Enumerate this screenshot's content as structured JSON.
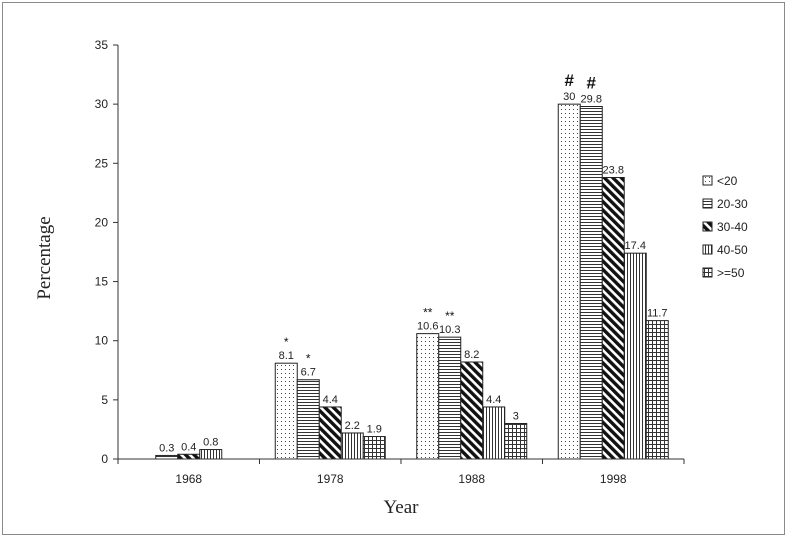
{
  "chart_data": {
    "type": "bar",
    "categories": [
      "1968",
      "1978",
      "1988",
      "1998"
    ],
    "series": [
      {
        "name": "<20",
        "values": [
          null,
          8.1,
          10.6,
          30
        ],
        "pattern": "dots"
      },
      {
        "name": "20-30",
        "values": [
          0.3,
          6.7,
          10.3,
          29.8
        ],
        "pattern": "hlines"
      },
      {
        "name": "30-40",
        "values": [
          0.4,
          4.4,
          8.2,
          23.8
        ],
        "pattern": "diag"
      },
      {
        "name": "40-50",
        "values": [
          0.8,
          2.2,
          4.4,
          17.4
        ],
        "pattern": "vlines"
      },
      {
        "name": ">=50",
        "values": [
          null,
          1.9,
          3,
          11.7
        ],
        "pattern": "grid"
      }
    ],
    "data_labels": [
      [
        "",
        "8.1",
        "10.6",
        "30"
      ],
      [
        "0.3",
        "6.7",
        "10.3",
        "29.8"
      ],
      [
        "0.4",
        "4.4",
        "8.2",
        "23.8"
      ],
      [
        "0.8",
        "2.2",
        "4.4",
        "17.4"
      ],
      [
        "",
        "1.9",
        "3",
        "11.7"
      ]
    ],
    "significance_marks": [
      {
        "category": "1978",
        "series": "<20",
        "mark": "*"
      },
      {
        "category": "1978",
        "series": "20-30",
        "mark": "*"
      },
      {
        "category": "1988",
        "series": "<20",
        "mark": "**"
      },
      {
        "category": "1988",
        "series": "20-30",
        "mark": "**"
      },
      {
        "category": "1998",
        "series": "<20",
        "mark": "#"
      },
      {
        "category": "1998",
        "series": "20-30",
        "mark": "#"
      }
    ],
    "xlabel": "Year",
    "ylabel": "Percentage",
    "ylim": [
      0,
      35
    ],
    "yticks": [
      0,
      5,
      10,
      15,
      20,
      25,
      30,
      35
    ],
    "grid": false,
    "legend_position": "right"
  }
}
